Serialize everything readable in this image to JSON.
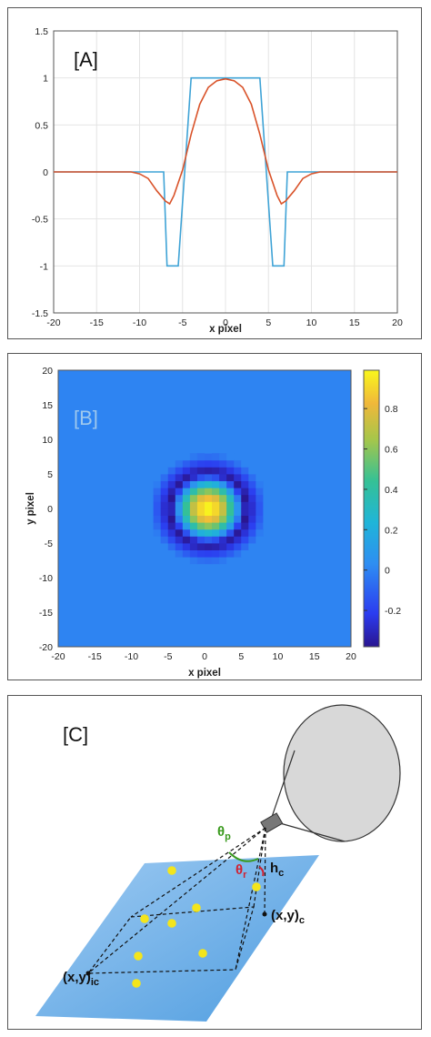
{
  "panels": {
    "a_label": "[A]",
    "b_label": "[B]",
    "c_label": "[C]"
  },
  "chart_data": [
    {
      "type": "line",
      "xlabel": "x pixel",
      "ylabel": "",
      "xlim": [
        -20,
        20
      ],
      "ylim": [
        -1.5,
        1.5
      ],
      "xticks": [
        "-20",
        "-15",
        "-10",
        "-5",
        "0",
        "5",
        "10",
        "15",
        "20"
      ],
      "yticks": [
        "1.5",
        "1",
        "0.5",
        "0",
        "-0.5",
        "-1",
        "-1.5"
      ],
      "grid": true,
      "series": [
        {
          "color": "#3fa3d6",
          "x": [
            -20,
            -7.2,
            -6.8,
            -6,
            -5.5,
            -4,
            -3.9,
            3.9,
            4,
            5.5,
            6,
            6.8,
            7.2,
            20
          ],
          "y": [
            0,
            0,
            -1,
            -1,
            -1,
            1,
            1,
            1,
            1,
            -1,
            -1,
            -1,
            0,
            0
          ]
        },
        {
          "color": "#d9532a",
          "x": [
            -20,
            -11,
            -10,
            -9,
            -8,
            -7,
            -6.5,
            -6,
            -5,
            -4,
            -3,
            -2,
            -1,
            0,
            1,
            2,
            3,
            4,
            5,
            6,
            6.5,
            7,
            8,
            9,
            10,
            11,
            20
          ],
          "y": [
            0,
            0,
            -0.02,
            -0.07,
            -0.2,
            -0.31,
            -0.34,
            -0.25,
            0.02,
            0.4,
            0.72,
            0.9,
            0.97,
            0.99,
            0.97,
            0.9,
            0.72,
            0.4,
            0.02,
            -0.25,
            -0.34,
            -0.31,
            -0.2,
            -0.07,
            -0.02,
            0,
            0
          ]
        }
      ]
    },
    {
      "type": "heatmap",
      "xlabel": "x pixel",
      "ylabel": "y pixel",
      "xlim": [
        -20,
        20
      ],
      "ylim": [
        -20,
        20
      ],
      "xticks": [
        "-20",
        "-15",
        "-10",
        "-5",
        "0",
        "5",
        "10",
        "15",
        "20"
      ],
      "yticks": [
        "20",
        "15",
        "10",
        "5",
        "0",
        "-5",
        "-10",
        "-15",
        "-20"
      ],
      "center": [
        0.5,
        0
      ],
      "colorbar": {
        "min": -0.38,
        "max": 0.99,
        "ticks": [
          "0.8",
          "0.6",
          "0.4",
          "0.2",
          "0",
          "-0.2"
        ],
        "tick_values": [
          0.8,
          0.6,
          0.4,
          0.2,
          0,
          -0.2
        ]
      }
    },
    {
      "type": "diagram",
      "labels": {
        "theta_p": "θ",
        "theta_p_sub": "p",
        "theta_r": "θ",
        "theta_r_sub": "r",
        "h_c": "h",
        "h_c_sub": "c",
        "xy_c": "(x,y)",
        "xy_c_sub": "c",
        "xy_ic": "(x,y)",
        "xy_ic_sub": "ic"
      },
      "colors": {
        "theta_p": "#3a9a1e",
        "theta_r": "#d02030",
        "plane": "#7fb9ea",
        "dots": "#f3e51c",
        "balloon": "#d8d8d8"
      }
    }
  ]
}
